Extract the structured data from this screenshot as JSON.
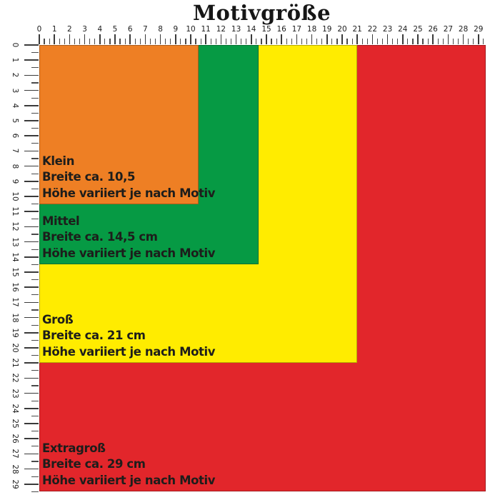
{
  "title": "Motivgröße",
  "rulers": {
    "horizontal": {
      "min": 0,
      "max": 29,
      "minor_ticks_per_unit": 2
    },
    "vertical": {
      "min": 0,
      "max": 29,
      "minor_ticks_per_unit": 1
    }
  },
  "sizes": [
    {
      "name": "Klein",
      "width_label": "Breite ca. 10,5",
      "height_label": "Höhe variiert je nach Motiv",
      "units": 10.5,
      "color": "#EE7F24"
    },
    {
      "name": "Mittel",
      "width_label": "Breite ca. 14,5 cm",
      "height_label": "Höhe variiert je nach Motiv",
      "units": 14.5,
      "color": "#069A44"
    },
    {
      "name": "Groß",
      "width_label": "Breite ca. 21 cm",
      "height_label": "Höhe variiert je nach Motiv",
      "units": 21,
      "color": "#FFEC00"
    },
    {
      "name": "Extragroß",
      "width_label": "Breite ca. 29 cm",
      "height_label": "Höhe variiert je nach Motiv",
      "units": 29,
      "color": "#E2262B"
    }
  ],
  "colors": {
    "background": "#ffffff",
    "tick": "#3a3a3a",
    "ruler_number": "#1c1c1c",
    "label_text": "#1d1d1b"
  }
}
